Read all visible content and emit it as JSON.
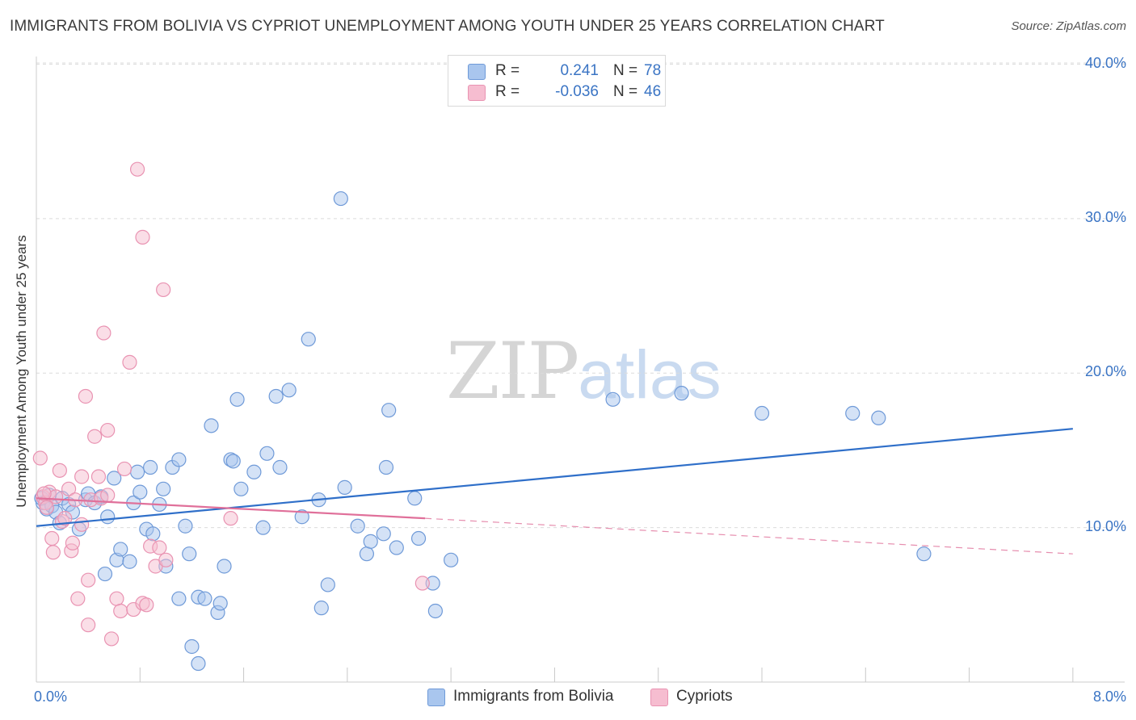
{
  "title": "IMMIGRANTS FROM BOLIVIA VS CYPRIOT UNEMPLOYMENT AMONG YOUTH UNDER 25 YEARS CORRELATION CHART",
  "source": "Source: ZipAtlas.com",
  "watermark": {
    "zip": "ZIP",
    "atlas": "atlas"
  },
  "colors": {
    "blue_fill": "#a9c6ee",
    "blue_stroke": "#6f9ad8",
    "blue_line": "#2f6fc9",
    "pink_fill": "#f6bdd0",
    "pink_stroke": "#e993b2",
    "pink_line": "#e0709a",
    "grid": "#dcdcdc",
    "axis_text": "#3a74c4"
  },
  "legend": {
    "rows": [
      {
        "r_label": "R =",
        "r_value": "0.241",
        "n_label": "N =",
        "n_value": "78"
      },
      {
        "r_label": "R =",
        "r_value": "-0.036",
        "n_label": "N =",
        "n_value": "46"
      }
    ],
    "bottom": [
      "Immigrants from Bolivia",
      "Cypriots"
    ]
  },
  "chart_data": {
    "type": "scatter",
    "title": "IMMIGRANTS FROM BOLIVIA VS CYPRIOT UNEMPLOYMENT AMONG YOUTH UNDER 25 YEARS CORRELATION CHART",
    "xlabel": "",
    "ylabel": "Unemployment Among Youth under 25 years",
    "xlim": [
      0,
      8.4
    ],
    "ylim": [
      0,
      40.5
    ],
    "x_tick_labels": [
      {
        "value": 0,
        "label": "0.0%"
      },
      {
        "value": 8,
        "label": "8.0%"
      }
    ],
    "y_tick_labels": [
      {
        "value": 10,
        "label": "10.0%"
      },
      {
        "value": 20,
        "label": "20.0%"
      },
      {
        "value": 30,
        "label": "30.0%"
      },
      {
        "value": 40,
        "label": "40.0%"
      }
    ],
    "x_minor_ticks": [
      0.8,
      1.6,
      2.4,
      3.2,
      4.0,
      4.8,
      5.6,
      6.4,
      7.2,
      8.0
    ],
    "series": [
      {
        "name": "Immigrants from Bolivia",
        "r": 0.241,
        "n": 78,
        "trend": {
          "x0": 0,
          "y0": 10.1,
          "x1": 8.0,
          "y1": 16.4
        },
        "points": [
          [
            0.05,
            11.6
          ],
          [
            0.08,
            11.2
          ],
          [
            0.1,
            12.1
          ],
          [
            0.12,
            11.4
          ],
          [
            0.15,
            11.0
          ],
          [
            0.18,
            10.3
          ],
          [
            0.2,
            11.9
          ],
          [
            0.25,
            11.5
          ],
          [
            0.28,
            11.0
          ],
          [
            0.33,
            9.9
          ],
          [
            0.38,
            11.8
          ],
          [
            0.4,
            12.2
          ],
          [
            0.45,
            11.6
          ],
          [
            0.5,
            12.0
          ],
          [
            0.55,
            10.7
          ],
          [
            0.6,
            13.2
          ],
          [
            0.62,
            7.9
          ],
          [
            0.65,
            8.6
          ],
          [
            0.53,
            7.0
          ],
          [
            0.72,
            7.8
          ],
          [
            0.75,
            11.6
          ],
          [
            0.8,
            12.3
          ],
          [
            0.78,
            13.6
          ],
          [
            0.85,
            9.9
          ],
          [
            0.88,
            13.9
          ],
          [
            0.9,
            9.6
          ],
          [
            0.95,
            11.5
          ],
          [
            0.98,
            12.5
          ],
          [
            1.0,
            7.5
          ],
          [
            1.05,
            13.9
          ],
          [
            1.1,
            14.4
          ],
          [
            1.1,
            5.4
          ],
          [
            1.15,
            10.1
          ],
          [
            1.18,
            8.3
          ],
          [
            1.2,
            2.3
          ],
          [
            1.25,
            1.2
          ],
          [
            1.25,
            5.5
          ],
          [
            1.3,
            5.4
          ],
          [
            1.35,
            16.6
          ],
          [
            1.4,
            4.5
          ],
          [
            1.42,
            5.1
          ],
          [
            1.45,
            7.5
          ],
          [
            1.5,
            14.4
          ],
          [
            1.52,
            14.3
          ],
          [
            1.55,
            18.3
          ],
          [
            1.58,
            12.5
          ],
          [
            1.68,
            13.6
          ],
          [
            1.75,
            10.0
          ],
          [
            1.78,
            14.8
          ],
          [
            1.85,
            18.5
          ],
          [
            1.88,
            13.9
          ],
          [
            1.95,
            18.9
          ],
          [
            2.05,
            10.7
          ],
          [
            2.1,
            22.2
          ],
          [
            2.18,
            11.8
          ],
          [
            2.2,
            4.8
          ],
          [
            2.25,
            6.3
          ],
          [
            2.35,
            31.3
          ],
          [
            2.38,
            12.6
          ],
          [
            2.48,
            10.1
          ],
          [
            2.55,
            8.3
          ],
          [
            2.58,
            9.1
          ],
          [
            2.68,
            9.6
          ],
          [
            2.7,
            13.9
          ],
          [
            2.72,
            17.6
          ],
          [
            2.78,
            8.7
          ],
          [
            2.92,
            11.9
          ],
          [
            2.95,
            9.3
          ],
          [
            3.06,
            6.4
          ],
          [
            3.08,
            4.6
          ],
          [
            3.2,
            7.9
          ],
          [
            4.45,
            18.3
          ],
          [
            4.98,
            18.7
          ],
          [
            5.6,
            17.4
          ],
          [
            6.3,
            17.4
          ],
          [
            6.5,
            17.1
          ],
          [
            6.85,
            8.3
          ],
          [
            0.04,
            11.9
          ]
        ]
      },
      {
        "name": "Cypriots",
        "r": -0.036,
        "n": 46,
        "trend": {
          "x0": 0,
          "y0": 11.9,
          "x1": 3.0,
          "y1": 10.6
        },
        "trend_dashed": {
          "x0": 3.0,
          "y0": 10.6,
          "x1": 8.0,
          "y1": 8.3
        },
        "points": [
          [
            0.03,
            14.5
          ],
          [
            0.05,
            12.0
          ],
          [
            0.07,
            11.6
          ],
          [
            0.08,
            11.3
          ],
          [
            0.1,
            12.3
          ],
          [
            0.12,
            9.3
          ],
          [
            0.13,
            8.4
          ],
          [
            0.15,
            12.0
          ],
          [
            0.18,
            13.7
          ],
          [
            0.2,
            10.4
          ],
          [
            0.22,
            10.6
          ],
          [
            0.25,
            12.5
          ],
          [
            0.27,
            8.5
          ],
          [
            0.28,
            9.0
          ],
          [
            0.3,
            11.8
          ],
          [
            0.32,
            5.4
          ],
          [
            0.35,
            10.2
          ],
          [
            0.35,
            13.3
          ],
          [
            0.38,
            18.5
          ],
          [
            0.4,
            6.6
          ],
          [
            0.4,
            3.7
          ],
          [
            0.42,
            11.8
          ],
          [
            0.45,
            15.9
          ],
          [
            0.48,
            13.3
          ],
          [
            0.5,
            11.9
          ],
          [
            0.52,
            22.6
          ],
          [
            0.55,
            12.1
          ],
          [
            0.55,
            16.3
          ],
          [
            0.58,
            2.8
          ],
          [
            0.62,
            5.4
          ],
          [
            0.65,
            4.6
          ],
          [
            0.68,
            13.8
          ],
          [
            0.72,
            20.7
          ],
          [
            0.75,
            4.7
          ],
          [
            0.78,
            33.2
          ],
          [
            0.82,
            28.8
          ],
          [
            0.82,
            5.1
          ],
          [
            0.85,
            5.0
          ],
          [
            0.88,
            8.8
          ],
          [
            0.92,
            7.5
          ],
          [
            0.95,
            8.7
          ],
          [
            0.98,
            25.4
          ],
          [
            1.0,
            7.9
          ],
          [
            1.5,
            10.6
          ],
          [
            2.98,
            6.4
          ],
          [
            0.06,
            12.2
          ]
        ]
      }
    ]
  }
}
